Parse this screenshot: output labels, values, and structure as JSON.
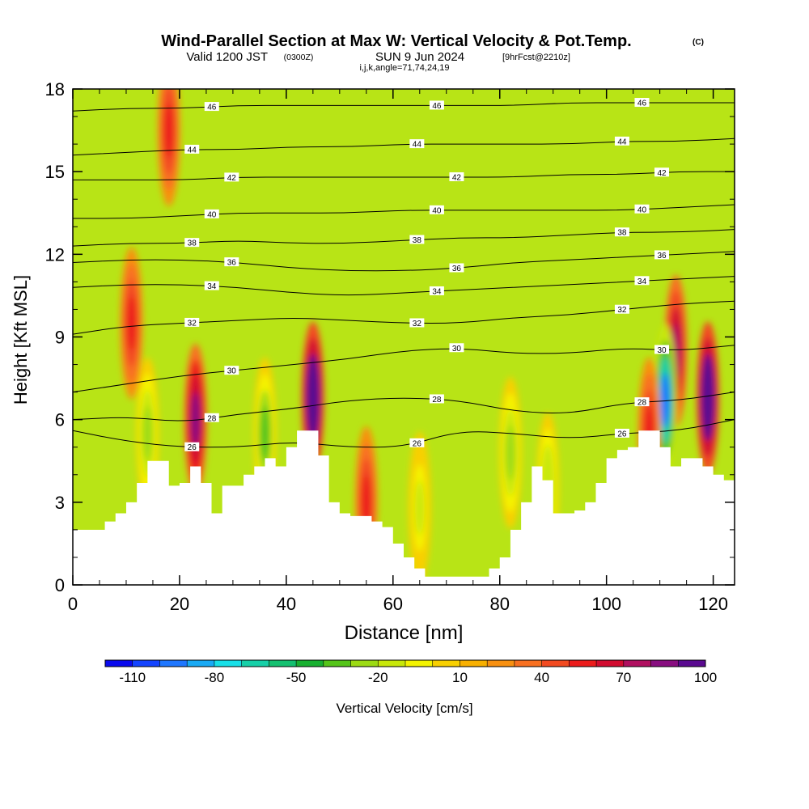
{
  "header": {
    "title": "Wind-Parallel Section at Max W: Vertical Velocity & Pot.Temp.",
    "copyright": "(C)",
    "valid_main": "Valid 1200 JST",
    "valid_z": "(0300Z)",
    "valid_date": "SUN 9 Jun 2024",
    "fcst": "[9hrFcst@2210z]",
    "coords": "i,j,k,angle=71,74,24,19"
  },
  "chart_data": {
    "type": "heatmap",
    "title": "Wind-Parallel Section at Max W: Vertical Velocity & Pot.Temp.",
    "xlabel": "Distance [nm]",
    "ylabel": "Height [Kft MSL]",
    "xlim": [
      0,
      124
    ],
    "ylim": [
      0,
      18
    ],
    "x_ticks": [
      "0",
      "20",
      "40",
      "60",
      "80",
      "100",
      "120"
    ],
    "y_ticks": [
      "0",
      "3",
      "6",
      "9",
      "12",
      "15",
      "18"
    ],
    "colorbar": {
      "label": "Vertical Velocity [cm/s]",
      "tick_labels": [
        "-110",
        "-80",
        "-50",
        "-20",
        "10",
        "40",
        "70",
        "100"
      ],
      "colors": [
        "#0a0aee",
        "#1444ff",
        "#1f77ff",
        "#19aaf5",
        "#18e0e8",
        "#16d0a8",
        "#14c070",
        "#18b030",
        "#55c51a",
        "#9cdb14",
        "#c8e80a",
        "#f4f400",
        "#f8d000",
        "#f8b000",
        "#f89010",
        "#f87020",
        "#f24a20",
        "#ec1c1c",
        "#d20c30",
        "#b01060",
        "#880e80",
        "#5a0a90"
      ]
    },
    "isotherms": [
      {
        "label": "26",
        "y": [
          5.6,
          5.2,
          5.0,
          5.0,
          5.2,
          5.0,
          5.0,
          5.6,
          5.5,
          5.3,
          5.5,
          5.6,
          6.0
        ]
      },
      {
        "label": "28",
        "y": [
          6.0,
          6.1,
          5.9,
          6.2,
          6.4,
          6.7,
          6.8,
          6.7,
          6.3,
          6.2,
          6.6,
          6.7,
          7.0
        ]
      },
      {
        "label": "30",
        "y": [
          7.0,
          7.3,
          7.6,
          7.8,
          8.0,
          8.2,
          8.5,
          8.6,
          8.4,
          8.4,
          8.6,
          8.5,
          8.7
        ]
      },
      {
        "label": "32",
        "y": [
          9.1,
          9.4,
          9.5,
          9.6,
          9.7,
          9.6,
          9.5,
          9.5,
          9.7,
          9.8,
          10.0,
          10.2,
          10.3
        ]
      },
      {
        "label": "34",
        "y": [
          10.8,
          10.9,
          10.9,
          10.8,
          10.6,
          10.5,
          10.6,
          10.7,
          10.8,
          10.9,
          11.0,
          11.1,
          11.2
        ]
      },
      {
        "label": "36",
        "y": [
          11.7,
          11.8,
          11.8,
          11.7,
          11.5,
          11.4,
          11.4,
          11.5,
          11.7,
          11.8,
          11.9,
          12.0,
          12.1
        ]
      },
      {
        "label": "38",
        "y": [
          12.3,
          12.4,
          12.4,
          12.5,
          12.4,
          12.4,
          12.5,
          12.6,
          12.6,
          12.7,
          12.8,
          12.8,
          12.9
        ]
      },
      {
        "label": "40",
        "y": [
          13.3,
          13.3,
          13.4,
          13.5,
          13.5,
          13.5,
          13.6,
          13.6,
          13.6,
          13.6,
          13.6,
          13.7,
          13.8
        ]
      },
      {
        "label": "42",
        "y": [
          14.7,
          14.7,
          14.7,
          14.8,
          14.8,
          14.8,
          14.8,
          14.8,
          14.8,
          14.9,
          14.9,
          15.0,
          15.0
        ]
      },
      {
        "label": "44",
        "y": [
          15.6,
          15.7,
          15.8,
          15.8,
          15.9,
          15.9,
          16.0,
          16.0,
          16.0,
          16.0,
          16.1,
          16.1,
          16.2
        ]
      },
      {
        "label": "46",
        "y": [
          17.2,
          17.3,
          17.3,
          17.4,
          17.4,
          17.4,
          17.4,
          17.4,
          17.4,
          17.5,
          17.5,
          17.5,
          17.5
        ]
      }
    ],
    "terrain": {
      "x": [
        0,
        4,
        6,
        8,
        10,
        12,
        14,
        16,
        18,
        20,
        22,
        24,
        26,
        28,
        30,
        32,
        34,
        36,
        38,
        40,
        42,
        44,
        46,
        48,
        50,
        52,
        54,
        56,
        58,
        60,
        62,
        64,
        66,
        68,
        70,
        72,
        74,
        76,
        78,
        80,
        82,
        84,
        86,
        88,
        90,
        92,
        94,
        96,
        98,
        100,
        102,
        104,
        106,
        108,
        110,
        112,
        114,
        116,
        118,
        120,
        122,
        124
      ],
      "h": [
        2.0,
        2.0,
        2.3,
        2.6,
        3.0,
        3.7,
        4.5,
        4.5,
        3.6,
        3.7,
        4.3,
        3.7,
        2.6,
        3.6,
        3.6,
        4.0,
        4.3,
        4.6,
        4.3,
        5.0,
        5.6,
        5.6,
        4.7,
        3.0,
        2.6,
        2.5,
        2.5,
        2.3,
        2.1,
        1.5,
        1.0,
        0.6,
        0.3,
        0.3,
        0.3,
        0.3,
        0.3,
        0.3,
        0.6,
        1.0,
        2.0,
        3.0,
        4.3,
        3.8,
        2.6,
        2.6,
        2.7,
        3.0,
        3.7,
        4.6,
        4.9,
        5.0,
        5.6,
        5.6,
        5.0,
        4.3,
        4.6,
        4.6,
        4.3,
        4.0,
        3.8,
        3.3
      ]
    },
    "velocity_features": [
      {
        "x": 23,
        "y": 6.0,
        "w": 80,
        "desc": "updraft"
      },
      {
        "x": 45,
        "y": 6.8,
        "w": 110,
        "desc": "updraft"
      },
      {
        "x": 119,
        "y": 6.8,
        "w": 115,
        "desc": "updraft"
      },
      {
        "x": 113,
        "y": 8.5,
        "w": 70,
        "desc": "updraft"
      },
      {
        "x": 111,
        "y": 6.7,
        "w": -100,
        "desc": "downdraft"
      },
      {
        "x": 11,
        "y": 9.5,
        "w": 50,
        "desc": "updraft"
      },
      {
        "x": 18,
        "y": 16.5,
        "w": 45,
        "desc": "updraft"
      },
      {
        "x": 55,
        "y": 3.0,
        "w": 50,
        "desc": "updraft"
      },
      {
        "x": 36,
        "y": 5.5,
        "w": -40,
        "desc": "downdraft"
      },
      {
        "x": 82,
        "y": 4.8,
        "w": -35,
        "desc": "downdraft"
      },
      {
        "x": 89,
        "y": 3.5,
        "w": -25,
        "desc": "downdraft"
      },
      {
        "x": 14,
        "y": 5.5,
        "w": -30,
        "desc": "downdraft"
      },
      {
        "x": 65,
        "y": 2.8,
        "w": -20,
        "desc": "downdraft"
      },
      {
        "x": 108,
        "y": 5.5,
        "w": 50,
        "desc": "updraft"
      }
    ]
  }
}
